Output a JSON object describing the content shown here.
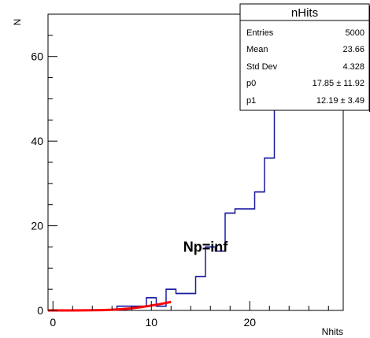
{
  "chart_data": {
    "type": "histogram",
    "title": "",
    "xlabel": "Nhits",
    "ylabel": "N",
    "xlim": [
      -0.5,
      29.5
    ],
    "ylim": [
      0,
      70
    ],
    "bin_width": 1,
    "x_ticks": [
      0,
      10,
      20
    ],
    "y_ticks": [
      0,
      20,
      40,
      60
    ],
    "grid": false,
    "histogram": {
      "name": "nHits",
      "color": "#1a1aa0",
      "bin_low_edges": [
        6.5,
        7.5,
        8.5,
        9.5,
        10.5,
        11.5,
        12.5,
        13.5,
        14.5,
        15.5,
        16.5,
        17.5,
        18.5,
        19.5,
        20.5,
        21.5,
        22.5,
        23.5
      ],
      "counts": [
        1,
        1,
        1,
        3,
        1,
        5,
        4,
        4,
        8,
        15,
        14,
        23,
        24,
        24,
        28,
        36,
        48,
        50
      ]
    },
    "fit": {
      "color": "#ff0000",
      "x": [
        -0.5,
        1,
        2,
        3,
        4,
        5,
        6,
        7,
        8,
        9,
        10,
        11,
        12
      ],
      "y": [
        0.0,
        0.0,
        0.01,
        0.02,
        0.04,
        0.08,
        0.16,
        0.3,
        0.5,
        0.8,
        1.15,
        1.55,
        2.0
      ]
    },
    "annotation": {
      "text": "Np=inf",
      "x": 15.5,
      "y": 15
    },
    "stats_box": {
      "title": "nHits",
      "rows": [
        {
          "label": "Entries",
          "value": "5000"
        },
        {
          "label": "Mean",
          "value": "23.66"
        },
        {
          "label": "Std Dev",
          "value": "4.328"
        },
        {
          "label": "p0",
          "value": "17.85 ± 11.92"
        },
        {
          "label": "p1",
          "value": "12.19 ± 3.49"
        }
      ]
    }
  }
}
